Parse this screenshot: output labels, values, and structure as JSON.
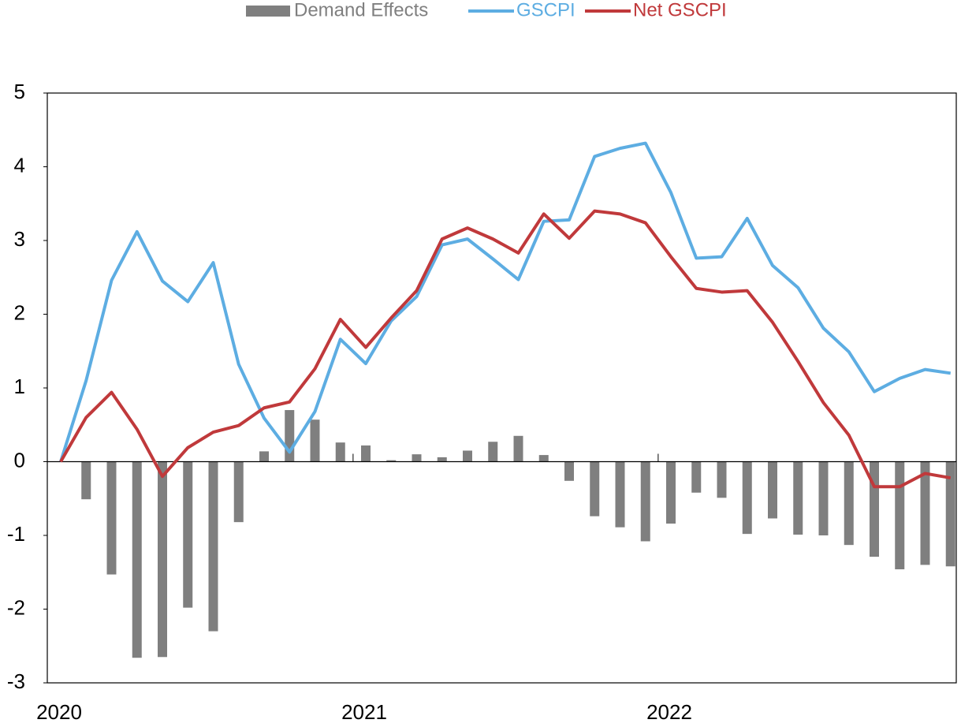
{
  "chart_data": {
    "type": "combo",
    "categories": [
      "2020",
      null,
      null,
      null,
      null,
      null,
      null,
      null,
      null,
      null,
      null,
      null,
      "2021",
      null,
      null,
      null,
      null,
      null,
      null,
      null,
      null,
      null,
      null,
      null,
      "2022",
      null,
      null,
      null,
      null,
      null,
      null,
      null,
      null,
      null,
      null,
      null
    ],
    "series": [
      {
        "name": "Demand Effects",
        "type": "bar",
        "color": "#7f7f7f",
        "values": [
          0,
          -0.51,
          -1.53,
          -2.66,
          -2.65,
          -1.98,
          -2.3,
          -0.82,
          0.14,
          0.7,
          0.57,
          0.26,
          0.22,
          0.02,
          0.1,
          0.06,
          0.15,
          0.27,
          0.35,
          0.09,
          -0.26,
          -0.74,
          -0.89,
          -1.08,
          -0.84,
          -0.42,
          -0.49,
          -0.98,
          -0.77,
          -0.99,
          -1.0,
          -1.13,
          -1.29,
          -1.46,
          -1.4,
          -1.42
        ]
      },
      {
        "name": "GSCPI",
        "type": "line",
        "color": "#5dade2",
        "values": [
          0,
          1.1,
          2.46,
          3.12,
          2.45,
          2.17,
          2.7,
          1.32,
          0.59,
          0.13,
          0.68,
          1.66,
          1.33,
          1.91,
          2.24,
          2.94,
          3.02,
          2.75,
          2.47,
          3.26,
          3.28,
          4.14,
          4.25,
          4.32,
          3.65,
          2.76,
          2.78,
          3.3,
          2.66,
          2.36,
          1.81,
          1.49,
          0.95,
          1.13,
          1.25,
          1.2
        ]
      },
      {
        "name": "Net GSCPI",
        "type": "line",
        "color": "#c0393b",
        "values": [
          0,
          0.6,
          0.94,
          0.44,
          -0.2,
          0.19,
          0.4,
          0.49,
          0.73,
          0.81,
          1.26,
          1.93,
          1.55,
          1.95,
          2.32,
          3.02,
          3.17,
          3.02,
          2.83,
          3.36,
          3.03,
          3.4,
          3.36,
          3.24,
          2.78,
          2.35,
          2.3,
          2.32,
          1.89,
          1.36,
          0.8,
          0.36,
          -0.34,
          -0.34,
          -0.16,
          -0.22
        ]
      }
    ],
    "ylim": [
      -3,
      5
    ],
    "yticks": [
      -3,
      -2,
      -1,
      0,
      1,
      2,
      3,
      4,
      5
    ],
    "legend": "top"
  }
}
